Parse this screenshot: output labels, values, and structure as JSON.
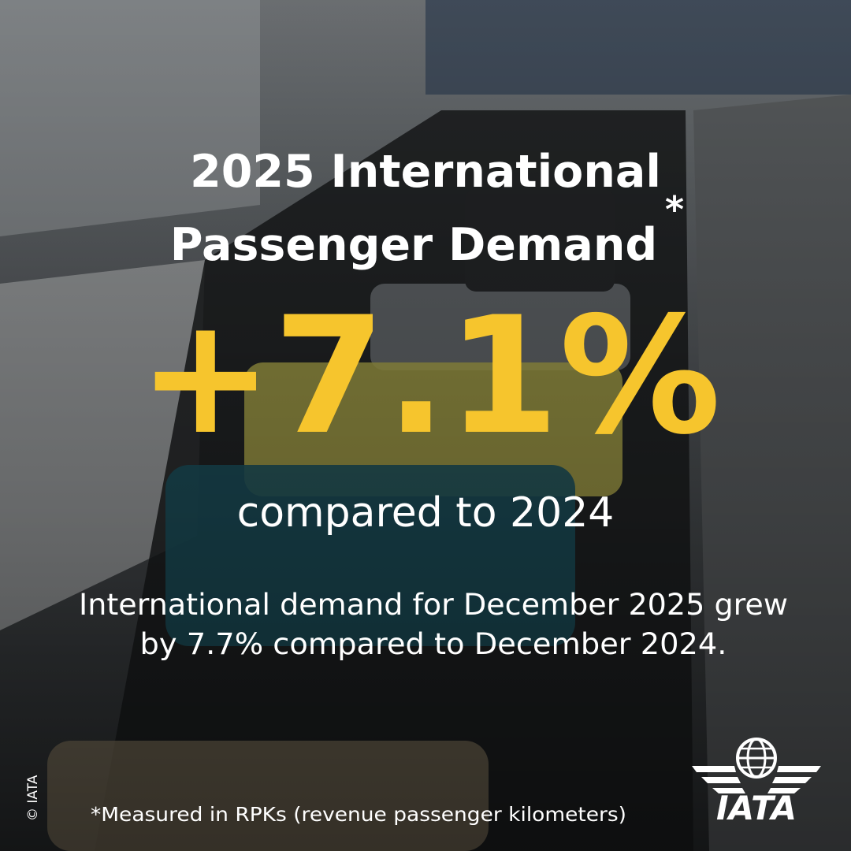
{
  "header": {
    "title_lines": [
      "2025 International",
      "Passenger Demand"
    ],
    "title_mark": "*"
  },
  "headline": {
    "figure": "+7.1%",
    "comparison": "compared to 2024"
  },
  "body": {
    "lines": [
      "International demand for December 2025 grew",
      "by 7.7% compared to December 2024."
    ]
  },
  "footnote": "*Measured in RPKs (revenue passenger kilometers)",
  "copyright": "© IATA",
  "logo": {
    "text": "IATA"
  }
}
